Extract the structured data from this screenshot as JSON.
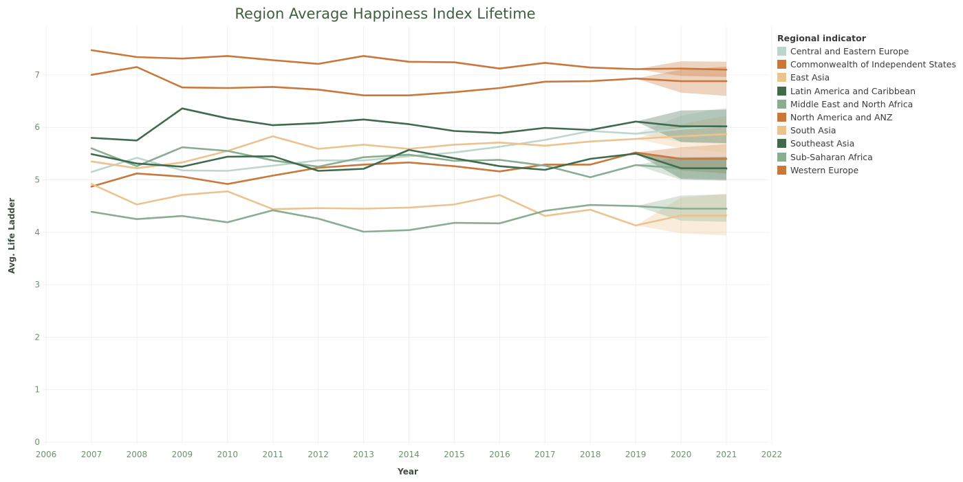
{
  "chart_data": {
    "type": "line",
    "title": "Region Average Happiness Index Lifetime",
    "xlabel": "Year",
    "ylabel": "Avg. Life Ladder",
    "xlim": [
      2006,
      2022
    ],
    "ylim": [
      0,
      7.7
    ],
    "x_ticks": [
      "2006",
      "2007",
      "2008",
      "2009",
      "2010",
      "2011",
      "2012",
      "2013",
      "2014",
      "2015",
      "2016",
      "2017",
      "2018",
      "2019",
      "2020",
      "2021",
      "2022"
    ],
    "y_ticks": [
      "0",
      "1",
      "2",
      "3",
      "4",
      "5",
      "6",
      "7"
    ],
    "grid": true,
    "legend_title": "Regional indicator",
    "legend_position": "right",
    "forecast_start": 2019,
    "x": [
      2007,
      2008,
      2009,
      2010,
      2011,
      2012,
      2013,
      2014,
      2015,
      2016,
      2017,
      2018,
      2019,
      2020,
      2021
    ],
    "series": [
      {
        "name": "Central and Eastern Europe",
        "color": "#bcd6cc",
        "values": [
          5.15,
          5.42,
          5.18,
          5.17,
          5.27,
          5.37,
          5.37,
          5.45,
          5.52,
          5.63,
          5.76,
          5.93,
          5.88,
          5.97,
          6.03
        ],
        "band": [
          [
            5.88,
            5.88
          ],
          [
            5.72,
            6.22
          ],
          [
            5.68,
            6.38
          ]
        ]
      },
      {
        "name": "Commonwealth of Independent States",
        "color": "#c9773a",
        "values": [
          4.87,
          5.12,
          5.06,
          4.92,
          5.08,
          5.23,
          5.29,
          5.33,
          5.26,
          5.16,
          5.29,
          5.29,
          5.52,
          5.4,
          5.4
        ],
        "band": [
          [
            5.52,
            5.52
          ],
          [
            5.18,
            5.62
          ],
          [
            5.12,
            5.68
          ]
        ]
      },
      {
        "name": "East Asia",
        "color": "#ecc38f",
        "values": [
          5.35,
          5.22,
          5.33,
          5.55,
          5.83,
          5.59,
          5.67,
          5.59,
          5.67,
          5.71,
          5.65,
          5.73,
          5.78,
          5.83,
          5.87
        ],
        "band": [
          [
            5.78,
            5.78
          ],
          [
            5.6,
            6.06
          ],
          [
            5.52,
            6.22
          ]
        ]
      },
      {
        "name": "Latin America and Caribbean",
        "color": "#3f6a4c",
        "values": [
          5.8,
          5.75,
          6.36,
          6.17,
          6.04,
          6.08,
          6.15,
          6.06,
          5.93,
          5.89,
          5.99,
          5.95,
          6.11,
          6.02,
          6.02
        ],
        "band": [
          [
            6.11,
            6.11
          ],
          [
            5.72,
            6.32
          ],
          [
            5.7,
            6.34
          ]
        ]
      },
      {
        "name": "Middle East and North Africa",
        "color": "#88ad90",
        "values": [
          5.6,
          5.26,
          5.62,
          5.55,
          5.37,
          5.25,
          5.43,
          5.48,
          5.36,
          5.38,
          5.27,
          5.05,
          5.28,
          5.22,
          5.2
        ],
        "band": [
          [
            5.28,
            5.28
          ],
          [
            5.0,
            5.44
          ],
          [
            4.98,
            5.42
          ]
        ]
      },
      {
        "name": "North America and ANZ",
        "color": "#c9773a",
        "values": [
          7.47,
          7.34,
          7.31,
          7.36,
          7.28,
          7.21,
          7.36,
          7.25,
          7.24,
          7.12,
          7.23,
          7.14,
          7.11,
          7.12,
          7.1
        ],
        "band": [
          [
            7.11,
            7.11
          ],
          [
            6.98,
            7.26
          ],
          [
            6.96,
            7.25
          ]
        ]
      },
      {
        "name": "South Asia",
        "color": "#ecc38f",
        "values": [
          4.92,
          4.53,
          4.71,
          4.78,
          4.44,
          4.46,
          4.45,
          4.47,
          4.53,
          4.71,
          4.31,
          4.43,
          4.13,
          4.32,
          4.32
        ],
        "band": [
          [
            4.13,
            4.13
          ],
          [
            3.98,
            4.66
          ],
          [
            3.94,
            4.74
          ]
        ]
      },
      {
        "name": "Southeast Asia",
        "color": "#3f6a4c",
        "values": [
          5.49,
          5.31,
          5.25,
          5.44,
          5.45,
          5.17,
          5.21,
          5.57,
          5.41,
          5.26,
          5.19,
          5.4,
          5.5,
          5.22,
          5.22
        ],
        "band": [
          [
            5.5,
            5.5
          ],
          [
            5.02,
            5.42
          ],
          [
            5.0,
            5.44
          ]
        ]
      },
      {
        "name": "Sub-Saharan Africa",
        "color": "#88ad90",
        "values": [
          4.39,
          4.25,
          4.31,
          4.19,
          4.42,
          4.26,
          4.01,
          4.04,
          4.18,
          4.17,
          4.41,
          4.52,
          4.5,
          4.45,
          4.45
        ],
        "band": [
          [
            4.5,
            4.5
          ],
          [
            4.22,
            4.7
          ],
          [
            4.2,
            4.72
          ]
        ]
      },
      {
        "name": "Western Europe",
        "color": "#c9773a",
        "values": [
          7.0,
          7.15,
          6.76,
          6.75,
          6.77,
          6.72,
          6.61,
          6.61,
          6.67,
          6.75,
          6.87,
          6.88,
          6.93,
          6.88,
          6.88
        ],
        "band": [
          [
            6.93,
            6.93
          ],
          [
            6.66,
            7.1
          ],
          [
            6.6,
            7.16
          ]
        ]
      }
    ]
  }
}
